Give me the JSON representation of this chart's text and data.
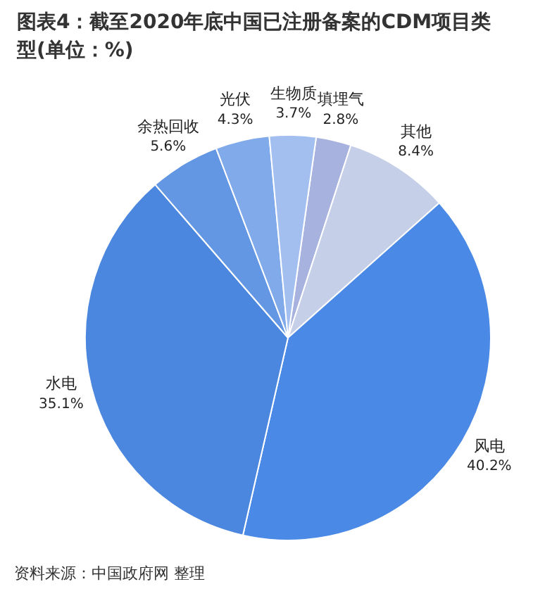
{
  "chart_data": {
    "type": "pie",
    "title": "图表4：截至2020年底中国已注册备案的CDM项目类型(单位：%)",
    "categories": [
      "填埋气",
      "其他",
      "风电",
      "水电",
      "余热回收",
      "光伏",
      "生物质"
    ],
    "values": [
      2.8,
      8.4,
      40.2,
      35.1,
      5.6,
      4.3,
      3.7
    ],
    "colors": [
      "#a7b3de",
      "#c5cfe8",
      "#4a89e6",
      "#4c87df",
      "#6397e3",
      "#80aaea",
      "#a2bff0"
    ],
    "value_labels": [
      "2.8%",
      "8.4%",
      "40.2%",
      "35.1%",
      "5.6%",
      "4.3%",
      "3.7%"
    ],
    "legend": false,
    "annotations": [
      "资料来源：中国政府网 整理"
    ]
  }
}
